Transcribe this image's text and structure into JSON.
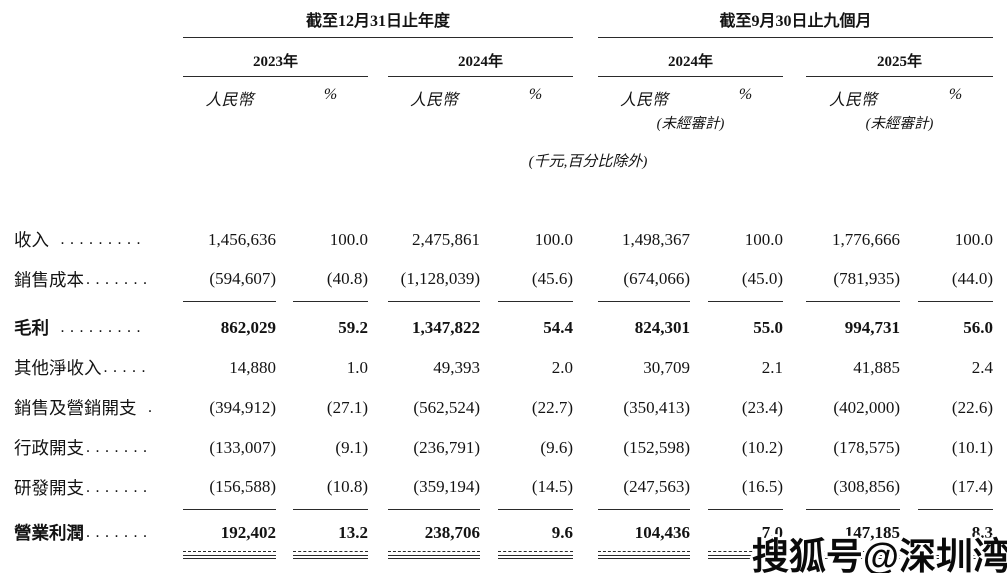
{
  "table": {
    "period_headers": [
      "截至12月31日止年度",
      "截至9月30日止九個月"
    ],
    "year_headers": [
      "2023年",
      "2024年",
      "2024年",
      "2025年"
    ],
    "currency_header": "人民幣",
    "percent_header": "%",
    "unaudited_note": "(未經審計)",
    "unit_note": "(千元,百分比除外)",
    "rows": [
      {
        "key": "revenue",
        "label": "收入",
        "dots": " .........",
        "bold": false,
        "rule_after": false,
        "final": false,
        "values": [
          "1,456,636",
          "100.0",
          "2,475,861",
          "100.0",
          "1,498,367",
          "100.0",
          "1,776,666",
          "100.0"
        ]
      },
      {
        "key": "cost-of-sales",
        "label": "銷售成本",
        "dots": ".......",
        "bold": false,
        "rule_after": true,
        "final": false,
        "values": [
          "(594,607)",
          "(40.8)",
          "(1,128,039)",
          "(45.6)",
          "(674,066)",
          "(45.0)",
          "(781,935)",
          "(44.0)"
        ]
      },
      {
        "key": "gross-profit",
        "label": "毛利",
        "dots": " .........",
        "bold": true,
        "rule_after": false,
        "final": false,
        "values": [
          "862,029",
          "59.2",
          "1,347,822",
          "54.4",
          "824,301",
          "55.0",
          "994,731",
          "56.0"
        ]
      },
      {
        "key": "other-net-income",
        "label": "其他淨收入",
        "dots": ".....",
        "bold": false,
        "rule_after": false,
        "final": false,
        "values": [
          "14,880",
          "1.0",
          "49,393",
          "2.0",
          "30,709",
          "2.1",
          "41,885",
          "2.4"
        ]
      },
      {
        "key": "selling-marketing-expenses",
        "label": "銷售及營銷開支",
        "dots": " .",
        "bold": false,
        "rule_after": false,
        "final": false,
        "values": [
          "(394,912)",
          "(27.1)",
          "(562,524)",
          "(22.7)",
          "(350,413)",
          "(23.4)",
          "(402,000)",
          "(22.6)"
        ]
      },
      {
        "key": "administrative-expenses",
        "label": "行政開支",
        "dots": ".......",
        "bold": false,
        "rule_after": false,
        "final": false,
        "values": [
          "(133,007)",
          "(9.1)",
          "(236,791)",
          "(9.6)",
          "(152,598)",
          "(10.2)",
          "(178,575)",
          "(10.1)"
        ]
      },
      {
        "key": "rd-expenses",
        "label": "研發開支",
        "dots": ".......",
        "bold": false,
        "rule_after": true,
        "final": false,
        "values": [
          "(156,588)",
          "(10.8)",
          "(359,194)",
          "(14.5)",
          "(247,563)",
          "(16.5)",
          "(308,856)",
          "(17.4)"
        ]
      },
      {
        "key": "operating-profit",
        "label": "營業利潤",
        "dots": ".......",
        "bold": true,
        "rule_after": false,
        "final": true,
        "values": [
          "192,402",
          "13.2",
          "238,706",
          "9.6",
          "104,436",
          "7.0",
          "147,185",
          "8.3"
        ]
      }
    ]
  },
  "watermark": {
    "text": "搜狐号@深圳湾"
  }
}
